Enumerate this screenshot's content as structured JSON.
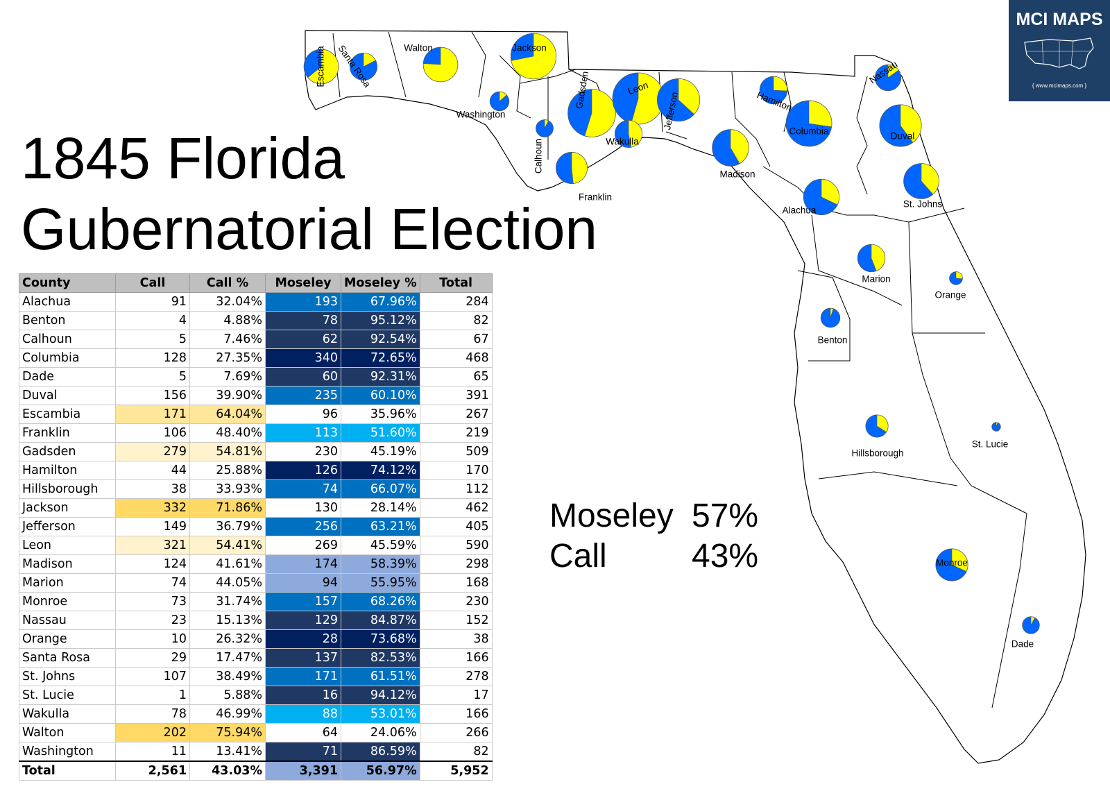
{
  "title": {
    "line1": "1845 Florida",
    "line2": "Gubernatorial Election"
  },
  "summary": {
    "moseley_label": "Moseley",
    "moseley_pct": "57%",
    "call_label": "Call",
    "call_pct": "43%"
  },
  "logo": {
    "title": "MCI MAPS",
    "url": "{ www.mcimaps.com }"
  },
  "colors": {
    "call": "#ffff00",
    "moseley": "#0066ff",
    "call_shade_light": "#fff2cc",
    "call_shade_mid": "#ffe699",
    "call_shade_dark": "#ffd966",
    "mos_shade_light": "#8ea9db",
    "mos_shade_cyan": "#00b0f0",
    "mos_shade_mid": "#0070c0",
    "mos_shade_dark": "#203864",
    "mos_shade_darkest": "#002060"
  },
  "table": {
    "headers": {
      "county": "County",
      "call": "Call",
      "call_pct": "Call %",
      "moseley": "Moseley",
      "moseley_pct": "Moseley %",
      "total": "Total"
    },
    "rows": [
      {
        "county": "Alachua",
        "call": "91",
        "call_pct": "32.04%",
        "moseley": "193",
        "moseley_pct": "67.96%",
        "total": "284"
      },
      {
        "county": "Benton",
        "call": "4",
        "call_pct": "4.88%",
        "moseley": "78",
        "moseley_pct": "95.12%",
        "total": "82"
      },
      {
        "county": "Calhoun",
        "call": "5",
        "call_pct": "7.46%",
        "moseley": "62",
        "moseley_pct": "92.54%",
        "total": "67"
      },
      {
        "county": "Columbia",
        "call": "128",
        "call_pct": "27.35%",
        "moseley": "340",
        "moseley_pct": "72.65%",
        "total": "468"
      },
      {
        "county": "Dade",
        "call": "5",
        "call_pct": "7.69%",
        "moseley": "60",
        "moseley_pct": "92.31%",
        "total": "65"
      },
      {
        "county": "Duval",
        "call": "156",
        "call_pct": "39.90%",
        "moseley": "235",
        "moseley_pct": "60.10%",
        "total": "391"
      },
      {
        "county": "Escambia",
        "call": "171",
        "call_pct": "64.04%",
        "moseley": "96",
        "moseley_pct": "35.96%",
        "total": "267"
      },
      {
        "county": "Franklin",
        "call": "106",
        "call_pct": "48.40%",
        "moseley": "113",
        "moseley_pct": "51.60%",
        "total": "219"
      },
      {
        "county": "Gadsden",
        "call": "279",
        "call_pct": "54.81%",
        "moseley": "230",
        "moseley_pct": "45.19%",
        "total": "509"
      },
      {
        "county": "Hamilton",
        "call": "44",
        "call_pct": "25.88%",
        "moseley": "126",
        "moseley_pct": "74.12%",
        "total": "170"
      },
      {
        "county": "Hillsborough",
        "call": "38",
        "call_pct": "33.93%",
        "moseley": "74",
        "moseley_pct": "66.07%",
        "total": "112"
      },
      {
        "county": "Jackson",
        "call": "332",
        "call_pct": "71.86%",
        "moseley": "130",
        "moseley_pct": "28.14%",
        "total": "462"
      },
      {
        "county": "Jefferson",
        "call": "149",
        "call_pct": "36.79%",
        "moseley": "256",
        "moseley_pct": "63.21%",
        "total": "405"
      },
      {
        "county": "Leon",
        "call": "321",
        "call_pct": "54.41%",
        "moseley": "269",
        "moseley_pct": "45.59%",
        "total": "590"
      },
      {
        "county": "Madison",
        "call": "124",
        "call_pct": "41.61%",
        "moseley": "174",
        "moseley_pct": "58.39%",
        "total": "298"
      },
      {
        "county": "Marion",
        "call": "74",
        "call_pct": "44.05%",
        "moseley": "94",
        "moseley_pct": "55.95%",
        "total": "168"
      },
      {
        "county": "Monroe",
        "call": "73",
        "call_pct": "31.74%",
        "moseley": "157",
        "moseley_pct": "68.26%",
        "total": "230"
      },
      {
        "county": "Nassau",
        "call": "23",
        "call_pct": "15.13%",
        "moseley": "129",
        "moseley_pct": "84.87%",
        "total": "152"
      },
      {
        "county": "Orange",
        "call": "10",
        "call_pct": "26.32%",
        "moseley": "28",
        "moseley_pct": "73.68%",
        "total": "38"
      },
      {
        "county": "Santa Rosa",
        "call": "29",
        "call_pct": "17.47%",
        "moseley": "137",
        "moseley_pct": "82.53%",
        "total": "166"
      },
      {
        "county": "St. Johns",
        "call": "107",
        "call_pct": "38.49%",
        "moseley": "171",
        "moseley_pct": "61.51%",
        "total": "278"
      },
      {
        "county": "St. Lucie",
        "call": "1",
        "call_pct": "5.88%",
        "moseley": "16",
        "moseley_pct": "94.12%",
        "total": "17"
      },
      {
        "county": "Wakulla",
        "call": "78",
        "call_pct": "46.99%",
        "moseley": "88",
        "moseley_pct": "53.01%",
        "total": "166"
      },
      {
        "county": "Walton",
        "call": "202",
        "call_pct": "75.94%",
        "moseley": "64",
        "moseley_pct": "24.06%",
        "total": "266"
      },
      {
        "county": "Washington",
        "call": "11",
        "call_pct": "13.41%",
        "moseley": "71",
        "moseley_pct": "86.59%",
        "total": "82"
      }
    ],
    "totals": {
      "county": "Total",
      "call": "2,561",
      "call_pct": "43.03%",
      "moseley": "3,391",
      "moseley_pct": "56.97%",
      "total": "5,952"
    }
  },
  "map": {
    "pies": [
      {
        "county": "Escambia",
        "label": "Escambia",
        "call": 171,
        "moseley": 96,
        "total": 267
      },
      {
        "county": "Santa Rosa",
        "label": "Santa Rosa",
        "call": 29,
        "moseley": 137,
        "total": 166
      },
      {
        "county": "Walton",
        "label": "Walton",
        "call": 202,
        "moseley": 64,
        "total": 266
      },
      {
        "county": "Jackson",
        "label": "Jackson",
        "call": 332,
        "moseley": 130,
        "total": 462
      },
      {
        "county": "Washington",
        "label": "Washington",
        "call": 11,
        "moseley": 71,
        "total": 82
      },
      {
        "county": "Calhoun",
        "label": "Calhoun",
        "call": 5,
        "moseley": 62,
        "total": 67
      },
      {
        "county": "Gadsden",
        "label": "Gadsden",
        "call": 279,
        "moseley": 230,
        "total": 509
      },
      {
        "county": "Leon",
        "label": "Leon",
        "call": 321,
        "moseley": 269,
        "total": 590
      },
      {
        "county": "Wakulla",
        "label": "Wakulla",
        "call": 78,
        "moseley": 88,
        "total": 166
      },
      {
        "county": "Jefferson",
        "label": "Jefferson",
        "call": 149,
        "moseley": 256,
        "total": 405
      },
      {
        "county": "Franklin",
        "label": "Franklin",
        "call": 106,
        "moseley": 113,
        "total": 219
      },
      {
        "county": "Madison",
        "label": "Madison",
        "call": 124,
        "moseley": 174,
        "total": 298
      },
      {
        "county": "Hamilton",
        "label": "Hamilton",
        "call": 44,
        "moseley": 126,
        "total": 170
      },
      {
        "county": "Columbia",
        "label": "Columbia",
        "call": 128,
        "moseley": 340,
        "total": 468
      },
      {
        "county": "Nassau",
        "label": "Nassau",
        "call": 23,
        "moseley": 129,
        "total": 152
      },
      {
        "county": "Duval",
        "label": "Duval",
        "call": 156,
        "moseley": 235,
        "total": 391
      },
      {
        "county": "Alachua",
        "label": "Alachua",
        "call": 91,
        "moseley": 193,
        "total": 284
      },
      {
        "county": "St. Johns",
        "label": "St. Johns",
        "call": 107,
        "moseley": 171,
        "total": 278
      },
      {
        "county": "Marion",
        "label": "Marion",
        "call": 74,
        "moseley": 94,
        "total": 168
      },
      {
        "county": "Orange",
        "label": "Orange",
        "call": 10,
        "moseley": 28,
        "total": 38
      },
      {
        "county": "Benton",
        "label": "Benton",
        "call": 4,
        "moseley": 78,
        "total": 82
      },
      {
        "county": "Hillsborough",
        "label": "Hillsborough",
        "call": 38,
        "moseley": 74,
        "total": 112
      },
      {
        "county": "St. Lucie",
        "label": "St. Lucie",
        "call": 1,
        "moseley": 16,
        "total": 17
      },
      {
        "county": "Monroe",
        "label": "Monroe",
        "call": 73,
        "moseley": 157,
        "total": 230
      },
      {
        "county": "Dade",
        "label": "Dade",
        "call": 5,
        "moseley": 60,
        "total": 65
      }
    ]
  }
}
